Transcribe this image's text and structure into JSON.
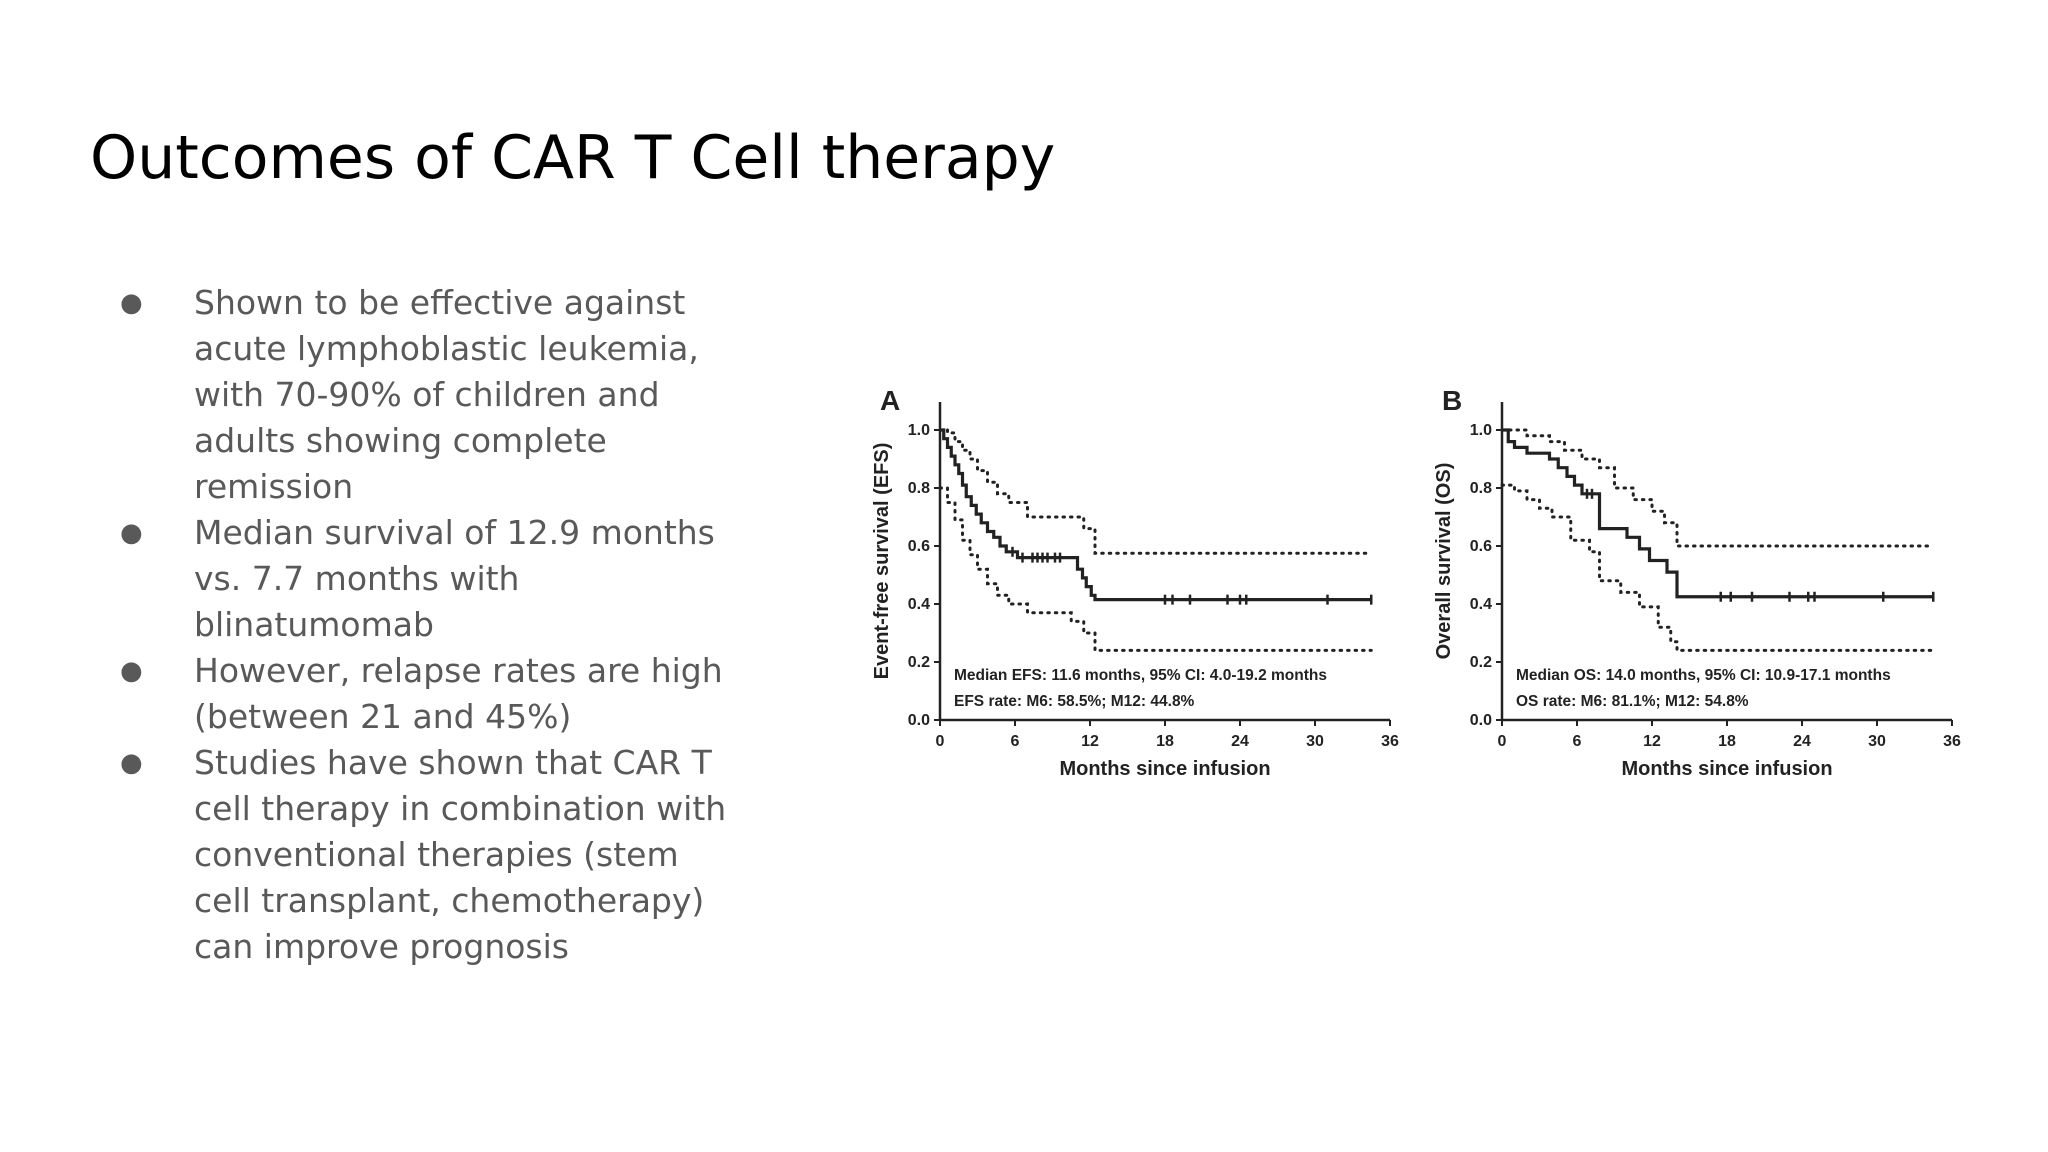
{
  "slide": {
    "title": "Outcomes of CAR T Cell therapy",
    "bullet_icon": "bullet-dot-icon",
    "bullets": [
      {
        "text": "Shown to be effective against acute lymphoblastic leukemia, with 70-90% of children and adults showing complete remission"
      },
      {
        "text": "Median survival of 12.9 months vs. 7.7 months with blinatumomab"
      },
      {
        "text": "However, relapse rates are high (between 21 and 45%)"
      },
      {
        "text": "Studies have shown that CAR T cell therapy in combination with conventional therapies (stem cell transplant, chemotherapy) can improve prognosis"
      }
    ]
  },
  "colors": {
    "title": "#000000",
    "body_text": "#595959",
    "chart_ink": "#222222"
  },
  "chart_data": [
    {
      "type": "line",
      "panel_label": "A",
      "title": "",
      "xlabel": "Months since infusion",
      "ylabel": "Event-free survival (EFS)",
      "xlim": [
        0,
        36
      ],
      "ylim": [
        0,
        1.0
      ],
      "xticks": [
        "0",
        "6",
        "12",
        "18",
        "24",
        "30",
        "36"
      ],
      "yticks": [
        "0.0",
        "0.2",
        "0.4",
        "0.6",
        "0.8",
        "1.0"
      ],
      "annotations": [
        "Median EFS: 11.6 months, 95% CI: 4.0-19.2 months",
        "EFS rate: M6: 58.5%; M12: 44.8%"
      ],
      "series": [
        {
          "style": "solid",
          "x": [
            0,
            0.3,
            0.6,
            0.9,
            1.2,
            1.5,
            1.8,
            2.1,
            2.5,
            2.9,
            3.3,
            3.8,
            4.3,
            4.8,
            5.3,
            6.2,
            6.8,
            11.0,
            11.4,
            11.7,
            12.1,
            12.4,
            34.5
          ],
          "y": [
            1.0,
            0.97,
            0.94,
            0.91,
            0.88,
            0.85,
            0.81,
            0.77,
            0.74,
            0.71,
            0.68,
            0.65,
            0.63,
            0.6,
            0.58,
            0.56,
            0.56,
            0.52,
            0.49,
            0.46,
            0.43,
            0.415,
            0.415
          ],
          "censor_x": [
            5.8,
            6.6,
            7.4,
            7.8,
            8.2,
            8.6,
            9.2,
            9.6,
            18.0,
            18.6,
            20.0,
            23.0,
            24.0,
            24.5,
            31.0,
            34.5
          ]
        },
        {
          "style": "dotted",
          "x": [
            0,
            0.6,
            1.2,
            1.8,
            2.4,
            3.0,
            3.8,
            4.6,
            5.5,
            7.0,
            10.5,
            11.5,
            12.4,
            34.5
          ],
          "y": [
            1.0,
            0.99,
            0.96,
            0.93,
            0.9,
            0.86,
            0.82,
            0.78,
            0.75,
            0.7,
            0.7,
            0.66,
            0.575,
            0.575
          ]
        },
        {
          "style": "dotted",
          "x": [
            0,
            0.6,
            1.2,
            1.8,
            2.4,
            3.0,
            3.8,
            4.6,
            5.5,
            7.0,
            10.5,
            11.5,
            12.4,
            34.5
          ],
          "y": [
            0.8,
            0.75,
            0.69,
            0.62,
            0.57,
            0.52,
            0.47,
            0.43,
            0.4,
            0.37,
            0.34,
            0.3,
            0.24,
            0.24
          ]
        }
      ]
    },
    {
      "type": "line",
      "panel_label": "B",
      "title": "",
      "xlabel": "Months since infusion",
      "ylabel": "Overall survival (OS)",
      "xlim": [
        0,
        36
      ],
      "ylim": [
        0,
        1.0
      ],
      "xticks": [
        "0",
        "6",
        "12",
        "18",
        "24",
        "30",
        "36"
      ],
      "yticks": [
        "0.0",
        "0.2",
        "0.4",
        "0.6",
        "0.8",
        "1.0"
      ],
      "annotations": [
        "Median OS: 14.0 months, 95% CI: 10.9-17.1 months",
        "OS rate: M6: 81.1%; M12: 54.8%"
      ],
      "series": [
        {
          "style": "solid",
          "x": [
            0,
            0.5,
            1.0,
            2.0,
            3.0,
            3.8,
            4.5,
            5.2,
            5.8,
            6.4,
            7.2,
            7.8,
            8.5,
            10.0,
            11.0,
            11.8,
            12.6,
            13.2,
            14.0,
            34.5
          ],
          "y": [
            1.0,
            0.96,
            0.94,
            0.92,
            0.92,
            0.9,
            0.87,
            0.84,
            0.81,
            0.78,
            0.78,
            0.66,
            0.66,
            0.63,
            0.59,
            0.55,
            0.55,
            0.51,
            0.425,
            0.425
          ],
          "censor_x": [
            6.8,
            7.2,
            17.5,
            18.3,
            20.0,
            23.0,
            24.5,
            25.0,
            30.5,
            34.5
          ]
        },
        {
          "style": "dotted",
          "x": [
            0,
            2.0,
            3.8,
            5.0,
            6.4,
            7.8,
            9.0,
            10.5,
            12.0,
            13.0,
            14.0,
            34.5
          ],
          "y": [
            1.0,
            0.98,
            0.96,
            0.93,
            0.9,
            0.87,
            0.8,
            0.76,
            0.72,
            0.68,
            0.6,
            0.6
          ]
        },
        {
          "style": "dotted",
          "x": [
            0,
            1.0,
            2.0,
            3.0,
            4.0,
            5.5,
            7.0,
            7.8,
            9.5,
            11.0,
            12.5,
            13.5,
            14.0,
            34.5
          ],
          "y": [
            0.81,
            0.79,
            0.76,
            0.73,
            0.7,
            0.62,
            0.58,
            0.48,
            0.44,
            0.39,
            0.32,
            0.27,
            0.24,
            0.24
          ]
        }
      ]
    }
  ]
}
